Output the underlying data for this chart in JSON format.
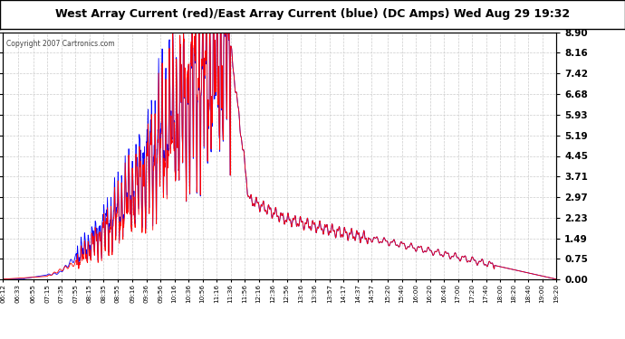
{
  "title": "West Array Current (red)/East Array Current (blue) (DC Amps) Wed Aug 29 19:32",
  "copyright": "Copyright 2007 Cartronics.com",
  "y_ticks": [
    0.0,
    0.75,
    1.49,
    2.23,
    2.97,
    3.71,
    4.45,
    5.19,
    5.93,
    6.68,
    7.42,
    8.16,
    8.9
  ],
  "ylim": [
    0.0,
    8.9
  ],
  "x_labels": [
    "06:12",
    "06:33",
    "06:55",
    "07:15",
    "07:35",
    "07:55",
    "08:15",
    "08:35",
    "08:55",
    "09:16",
    "09:36",
    "09:56",
    "10:16",
    "10:36",
    "10:56",
    "11:16",
    "11:36",
    "11:56",
    "12:16",
    "12:36",
    "12:56",
    "13:16",
    "13:36",
    "13:57",
    "14:17",
    "14:37",
    "14:57",
    "15:20",
    "15:40",
    "16:00",
    "16:20",
    "16:40",
    "17:00",
    "17:20",
    "17:40",
    "18:00",
    "18:20",
    "18:40",
    "19:00",
    "19:20"
  ],
  "background_color": "#ffffff",
  "plot_bg_color": "#ffffff",
  "grid_color": "#cccccc",
  "red_color": "#ff0000",
  "blue_color": "#0000ff"
}
